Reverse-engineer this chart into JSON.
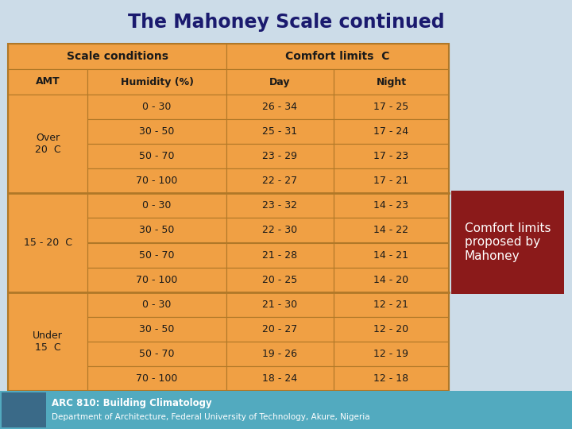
{
  "title": "The Mahoney Scale continued",
  "title_color": "#1a1a6e",
  "bg_color": "#ccdce8",
  "table_bg": "#f0a044",
  "cell_border": "#b07828",
  "annotation_bg": "#8b1a1a",
  "annotation_text": "Comfort limits\nproposed by\nMahoney",
  "annotation_text_color": "#ffffff",
  "footer_bg": "#52aabf",
  "footer_line1": "ARC 810: Building Climatology",
  "footer_line2": "Department of Architecture, Federal University of Technology, Akure, Nigeria",
  "footer_text_color": "#ffffff",
  "col_headers": [
    "AMT",
    "Humidity (%)",
    "Day",
    "Night"
  ],
  "super_headers": [
    "Scale conditions",
    "Comfort limits  C"
  ],
  "amt_labels": [
    "Over\n20  C",
    "15 - 20  C",
    "Under\n15  C"
  ],
  "rows": [
    [
      "0 - 30",
      "26 - 34",
      "17 - 25"
    ],
    [
      "30 - 50",
      "25 - 31",
      "17 - 24"
    ],
    [
      "50 - 70",
      "23 - 29",
      "17 - 23"
    ],
    [
      "70 - 100",
      "22 - 27",
      "17 - 21"
    ],
    [
      "0 - 30",
      "23 - 32",
      "14 - 23"
    ],
    [
      "30 - 50",
      "22 - 30",
      "14 - 22"
    ],
    [
      "50 - 70",
      "21 - 28",
      "14 - 21"
    ],
    [
      "70 - 100",
      "20 - 25",
      "14 - 20"
    ],
    [
      "0 - 30",
      "21 - 30",
      "12 - 21"
    ],
    [
      "30 - 50",
      "20 - 27",
      "12 - 20"
    ],
    [
      "50 - 70",
      "19 - 26",
      "12 - 19"
    ],
    [
      "70 - 100",
      "18 - 24",
      "12 - 18"
    ]
  ]
}
